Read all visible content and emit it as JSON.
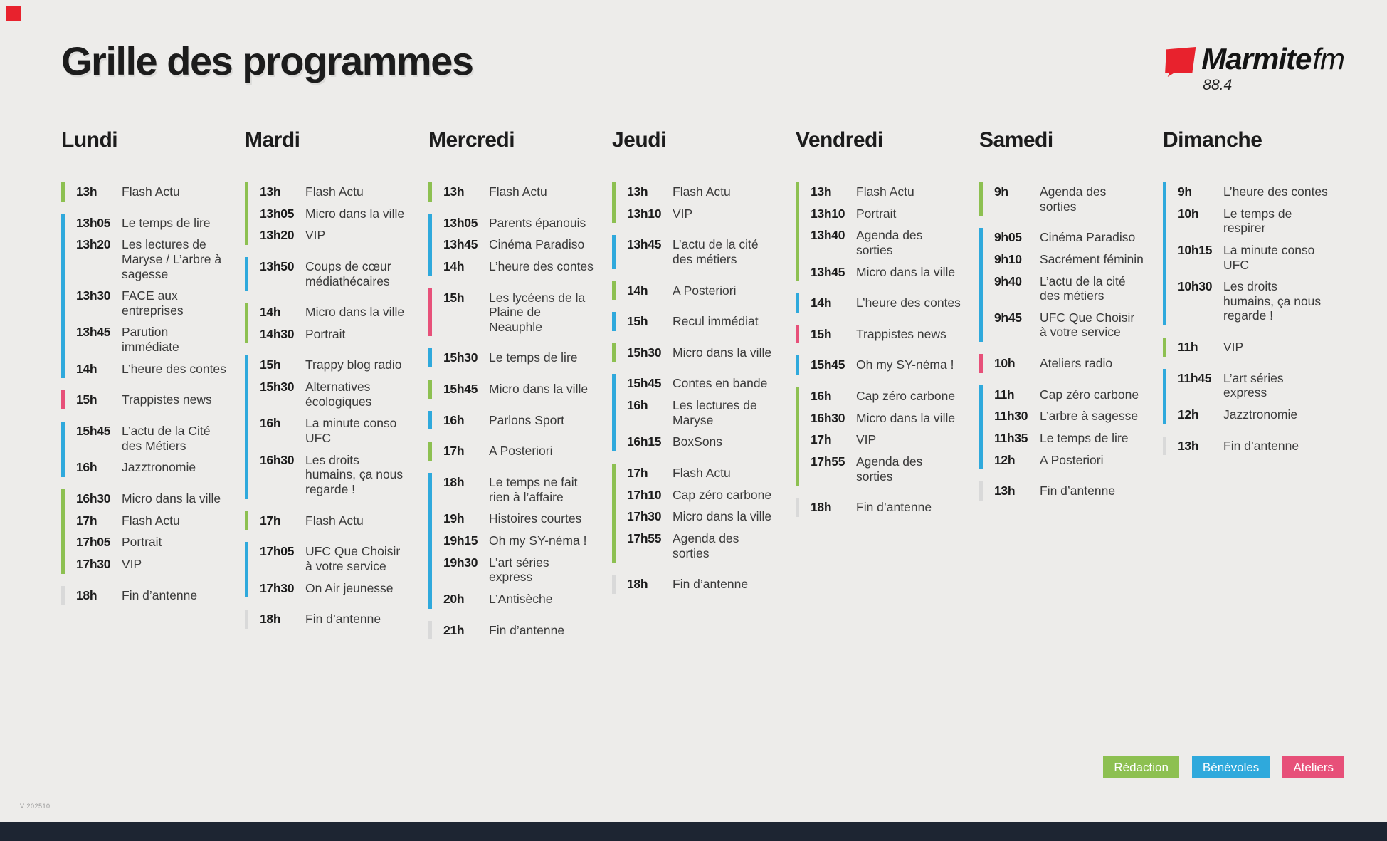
{
  "page": {
    "title": "Grille des programmes",
    "version": "V 202510"
  },
  "logo": {
    "brand": "Marmite",
    "suffix": "fm",
    "frequency": "88.4",
    "mark_color": "#e8222d"
  },
  "colors": {
    "redaction": "#8dc051",
    "benevoles": "#2fa9dc",
    "ateliers": "#e75079",
    "fin": "#d9d9d9"
  },
  "legend": [
    {
      "label": "Rédaction",
      "key": "redaction"
    },
    {
      "label": "Bénévoles",
      "key": "benevoles"
    },
    {
      "label": "Ateliers",
      "key": "ateliers"
    }
  ],
  "days": [
    {
      "name": "Lundi",
      "groups": [
        {
          "type": "redaction",
          "items": [
            {
              "time": "13h",
              "title": "Flash Actu"
            }
          ]
        },
        {
          "type": "benevoles",
          "items": [
            {
              "time": "13h05",
              "title": "Le temps de lire"
            },
            {
              "time": "13h20",
              "title": "Les lectures de Maryse / L’arbre à sagesse"
            },
            {
              "time": "13h30",
              "title": "FACE aux entreprises"
            },
            {
              "time": "13h45",
              "title": "Parution immédiate"
            },
            {
              "time": "14h",
              "title": "L’heure des contes"
            }
          ]
        },
        {
          "type": "ateliers",
          "items": [
            {
              "time": "15h",
              "title": "Trappistes news"
            }
          ]
        },
        {
          "type": "benevoles",
          "items": [
            {
              "time": "15h45",
              "title": "L’actu de la Cité des Métiers"
            },
            {
              "time": "16h",
              "title": "Jazztronomie"
            }
          ]
        },
        {
          "type": "redaction",
          "items": [
            {
              "time": "16h30",
              "title": "Micro dans la ville"
            },
            {
              "time": "17h",
              "title": "Flash Actu"
            },
            {
              "time": "17h05",
              "title": "Portrait"
            },
            {
              "time": "17h30",
              "title": "VIP"
            }
          ]
        },
        {
          "type": "fin",
          "items": [
            {
              "time": "18h",
              "title": "Fin d’antenne"
            }
          ]
        }
      ]
    },
    {
      "name": "Mardi",
      "groups": [
        {
          "type": "redaction",
          "items": [
            {
              "time": "13h",
              "title": "Flash Actu"
            },
            {
              "time": "13h05",
              "title": "Micro dans la ville"
            },
            {
              "time": "13h20",
              "title": "VIP"
            }
          ]
        },
        {
          "type": "benevoles",
          "items": [
            {
              "time": "13h50",
              "title": "Coups de cœur médiathécaires"
            }
          ]
        },
        {
          "type": "redaction",
          "items": [
            {
              "time": "14h",
              "title": "Micro dans la ville"
            },
            {
              "time": "14h30",
              "title": "Portrait"
            }
          ]
        },
        {
          "type": "benevoles",
          "items": [
            {
              "time": "15h",
              "title": "Trappy blog radio"
            },
            {
              "time": "15h30",
              "title": "Alternatives écologiques"
            },
            {
              "time": "16h",
              "title": "La minute conso UFC"
            },
            {
              "time": "16h30",
              "title": "Les droits humains, ça nous regarde !"
            }
          ]
        },
        {
          "type": "redaction",
          "items": [
            {
              "time": "17h",
              "title": "Flash Actu"
            }
          ]
        },
        {
          "type": "benevoles",
          "items": [
            {
              "time": "17h05",
              "title": "UFC Que Choisir à votre service"
            },
            {
              "time": "17h30",
              "title": "On Air jeunesse"
            }
          ]
        },
        {
          "type": "fin",
          "items": [
            {
              "time": "18h",
              "title": "Fin d’antenne"
            }
          ]
        }
      ]
    },
    {
      "name": "Mercredi",
      "groups": [
        {
          "type": "redaction",
          "items": [
            {
              "time": "13h",
              "title": "Flash Actu"
            }
          ]
        },
        {
          "type": "benevoles",
          "items": [
            {
              "time": "13h05",
              "title": "Parents épanouis"
            },
            {
              "time": "13h45",
              "title": "Cinéma Paradiso"
            },
            {
              "time": "14h",
              "title": "L’heure des contes"
            }
          ]
        },
        {
          "type": "ateliers",
          "items": [
            {
              "time": "15h",
              "title": "Les lycéens de la Plaine de Neauphle"
            }
          ]
        },
        {
          "type": "benevoles",
          "items": [
            {
              "time": "15h30",
              "title": "Le temps de lire"
            }
          ]
        },
        {
          "type": "redaction",
          "items": [
            {
              "time": "15h45",
              "title": "Micro dans la ville"
            }
          ]
        },
        {
          "type": "benevoles",
          "items": [
            {
              "time": "16h",
              "title": "Parlons Sport"
            }
          ]
        },
        {
          "type": "redaction",
          "items": [
            {
              "time": "17h",
              "title": "A Posteriori"
            }
          ]
        },
        {
          "type": "benevoles",
          "items": [
            {
              "time": "18h",
              "title": "Le temps ne fait rien à l’affaire"
            },
            {
              "time": "19h",
              "title": "Histoires courtes"
            },
            {
              "time": "19h15",
              "title": "Oh my SY-néma !"
            },
            {
              "time": "19h30",
              "title": "L’art séries express"
            },
            {
              "time": "20h",
              "title": "L’Antisèche"
            }
          ]
        },
        {
          "type": "fin",
          "items": [
            {
              "time": "21h",
              "title": "Fin d’antenne"
            }
          ]
        }
      ]
    },
    {
      "name": "Jeudi",
      "groups": [
        {
          "type": "redaction",
          "items": [
            {
              "time": "13h",
              "title": "Flash Actu"
            },
            {
              "time": "13h10",
              "title": "VIP"
            }
          ]
        },
        {
          "type": "benevoles",
          "items": [
            {
              "time": "13h45",
              "title": "L’actu de la cité des métiers"
            }
          ]
        },
        {
          "type": "redaction",
          "items": [
            {
              "time": "14h",
              "title": "A Posteriori"
            }
          ]
        },
        {
          "type": "benevoles",
          "items": [
            {
              "time": "15h",
              "title": "Recul immédiat"
            }
          ]
        },
        {
          "type": "redaction",
          "items": [
            {
              "time": "15h30",
              "title": "Micro dans la ville"
            }
          ]
        },
        {
          "type": "benevoles",
          "items": [
            {
              "time": "15h45",
              "title": "Contes en bande"
            },
            {
              "time": "16h",
              "title": "Les lectures de Maryse"
            },
            {
              "time": "16h15",
              "title": "BoxSons"
            }
          ]
        },
        {
          "type": "redaction",
          "items": [
            {
              "time": "17h",
              "title": "Flash Actu"
            },
            {
              "time": "17h10",
              "title": "Cap zéro carbone"
            },
            {
              "time": "17h30",
              "title": "Micro dans la ville"
            },
            {
              "time": "17h55",
              "title": "Agenda des sorties"
            }
          ]
        },
        {
          "type": "fin",
          "items": [
            {
              "time": "18h",
              "title": "Fin d’antenne"
            }
          ]
        }
      ]
    },
    {
      "name": "Vendredi",
      "groups": [
        {
          "type": "redaction",
          "items": [
            {
              "time": "13h",
              "title": "Flash Actu"
            },
            {
              "time": "13h10",
              "title": "Portrait"
            },
            {
              "time": "13h40",
              "title": "Agenda des sorties"
            },
            {
              "time": "13h45",
              "title": "Micro dans la ville"
            }
          ]
        },
        {
          "type": "benevoles",
          "items": [
            {
              "time": "14h",
              "title": "L’heure des contes"
            }
          ]
        },
        {
          "type": "ateliers",
          "items": [
            {
              "time": "15h",
              "title": "Trappistes news"
            }
          ]
        },
        {
          "type": "benevoles",
          "items": [
            {
              "time": "15h45",
              "title": "Oh my SY-néma !"
            }
          ]
        },
        {
          "type": "redaction",
          "items": [
            {
              "time": "16h",
              "title": "Cap zéro carbone"
            },
            {
              "time": "16h30",
              "title": "Micro dans la ville"
            },
            {
              "time": "17h",
              "title": "VIP"
            },
            {
              "time": "17h55",
              "title": "Agenda des sorties"
            }
          ]
        },
        {
          "type": "fin",
          "items": [
            {
              "time": "18h",
              "title": "Fin d’antenne"
            }
          ]
        }
      ]
    },
    {
      "name": "Samedi",
      "groups": [
        {
          "type": "redaction",
          "items": [
            {
              "time": "9h",
              "title": "Agenda des sorties"
            }
          ]
        },
        {
          "type": "benevoles",
          "items": [
            {
              "time": "9h05",
              "title": "Cinéma Paradiso"
            },
            {
              "time": "9h10",
              "title": "Sacrément féminin"
            },
            {
              "time": "9h40",
              "title": "L’actu de la cité des métiers"
            },
            {
              "time": "9h45",
              "title": "UFC Que Choisir à votre service"
            }
          ]
        },
        {
          "type": "ateliers",
          "items": [
            {
              "time": "10h",
              "title": "Ateliers radio"
            }
          ]
        },
        {
          "type": "benevoles",
          "items": [
            {
              "time": "11h",
              "title": "Cap zéro carbone"
            },
            {
              "time": "11h30",
              "title": "L’arbre à sagesse"
            },
            {
              "time": "11h35",
              "title": "Le temps de lire"
            },
            {
              "time": "12h",
              "title": "A Posteriori"
            }
          ]
        },
        {
          "type": "fin",
          "items": [
            {
              "time": "13h",
              "title": "Fin d’antenne"
            }
          ]
        }
      ]
    },
    {
      "name": "Dimanche",
      "groups": [
        {
          "type": "benevoles",
          "items": [
            {
              "time": "9h",
              "title": "L’heure des contes"
            },
            {
              "time": "10h",
              "title": "Le temps de respirer"
            },
            {
              "time": "10h15",
              "title": "La minute conso UFC"
            },
            {
              "time": "10h30",
              "title": "Les droits humains, ça nous regarde !"
            }
          ]
        },
        {
          "type": "redaction",
          "items": [
            {
              "time": "11h",
              "title": "VIP"
            }
          ]
        },
        {
          "type": "benevoles",
          "items": [
            {
              "time": "11h45",
              "title": "L’art séries express"
            },
            {
              "time": "12h",
              "title": "Jazztronomie"
            }
          ]
        },
        {
          "type": "fin",
          "items": [
            {
              "time": "13h",
              "title": "Fin d’antenne"
            }
          ]
        }
      ]
    }
  ]
}
